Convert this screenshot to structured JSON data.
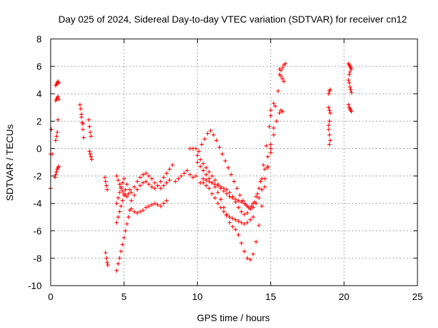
{
  "chart_data": {
    "type": "scatter",
    "title": "Day 025 of 2024, Sidereal Day-to-day VTEC variation (SDTVAR) for receiver cn12",
    "xlabel": "GPS time / hours",
    "ylabel": "SDTVAR / TECUs",
    "xlim": [
      0,
      25
    ],
    "ylim": [
      -10,
      8
    ],
    "xticks": [
      0,
      5,
      10,
      15,
      20,
      25
    ],
    "yticks": [
      -10,
      -8,
      -6,
      -4,
      -2,
      0,
      2,
      4,
      6,
      8
    ],
    "grid": true,
    "marker": "+",
    "marker_color": "#ff0000",
    "series": [
      {
        "name": "SDTVAR",
        "x": [
          0.0,
          0.0,
          0.05,
          0.1,
          0.3,
          0.35,
          0.4,
          0.45,
          0.5,
          0.55,
          0.35,
          0.4,
          0.45,
          0.5,
          0.35,
          0.4,
          0.45,
          0.5,
          0.55,
          0.35,
          0.4,
          0.45,
          0.5,
          0.55,
          2.0,
          2.05,
          2.1,
          2.15,
          2.2,
          2.25,
          2.1,
          2.2,
          2.6,
          2.65,
          2.7,
          2.75,
          2.65,
          2.7,
          2.75,
          2.8,
          3.7,
          3.75,
          3.8,
          3.85,
          3.75,
          3.8,
          3.85,
          3.9,
          4.5,
          4.6,
          4.7,
          4.8,
          4.9,
          5.0,
          5.1,
          5.2,
          5.3,
          5.4,
          4.5,
          4.6,
          4.7,
          4.8,
          4.9,
          5.0,
          5.1,
          5.2,
          5.3,
          5.4,
          4.5,
          4.6,
          4.7,
          4.8,
          4.9,
          5.0,
          5.1,
          5.2,
          4.5,
          4.6,
          4.7,
          4.8,
          4.9,
          5.0,
          5.5,
          5.7,
          5.9,
          6.1,
          6.3,
          6.5,
          6.7,
          6.9,
          7.1,
          7.3,
          7.5,
          7.7,
          7.9,
          5.5,
          5.7,
          5.9,
          6.1,
          6.3,
          6.5,
          6.7,
          6.9,
          7.1,
          7.3,
          7.5,
          7.7,
          7.9,
          8.1,
          5.5,
          5.7,
          5.9,
          6.1,
          6.3,
          6.5,
          6.7,
          6.9,
          7.1,
          7.3,
          7.5,
          7.7,
          7.9,
          8.1,
          8.3,
          8.5,
          8.7,
          8.9,
          9.1,
          9.3,
          9.5,
          9.7,
          9.9,
          9.5,
          9.7,
          9.9,
          10.1,
          10.3,
          10.5,
          10.7,
          10.9,
          11.1,
          11.3,
          11.5,
          11.7,
          11.9,
          12.1,
          12.3,
          12.5,
          12.7,
          12.9,
          13.1,
          13.3,
          13.5,
          13.7,
          13.9,
          14.1,
          14.3,
          14.5,
          14.7,
          14.9,
          15.0,
          10.0,
          10.2,
          10.4,
          10.6,
          10.8,
          11.0,
          11.2,
          11.4,
          11.6,
          11.8,
          12.0,
          12.2,
          12.4,
          12.6,
          12.8,
          13.0,
          13.2,
          13.4,
          13.6,
          13.8,
          14.0,
          14.2,
          14.4,
          14.6,
          14.8,
          15.0,
          10.4,
          10.6,
          10.8,
          11.0,
          11.2,
          11.4,
          11.6,
          11.8,
          12.0,
          12.2,
          12.4,
          12.6,
          12.8,
          13.0,
          13.2,
          13.4,
          13.6,
          13.8,
          14.0,
          14.2,
          14.4,
          14.6,
          14.8,
          15.0,
          15.2,
          10.0,
          10.2,
          10.4,
          10.6,
          10.8,
          11.0,
          11.2,
          11.4,
          11.6,
          11.8,
          12.0,
          12.2,
          12.4,
          12.6,
          12.8,
          13.0,
          13.2,
          13.4,
          13.6,
          13.8,
          14.0,
          14.2,
          14.4,
          14.6,
          14.8,
          15.0,
          15.2,
          15.4,
          10.2,
          10.4,
          10.6,
          10.8,
          11.0,
          11.2,
          11.4,
          11.6,
          11.8,
          12.0,
          12.2,
          12.4,
          12.6,
          12.8,
          13.0,
          13.2,
          13.4,
          13.6,
          13.8,
          15.0,
          15.2,
          15.3,
          15.5,
          15.6,
          15.7,
          15.8,
          15.9,
          16.0,
          15.6,
          15.7,
          15.8,
          15.9,
          15.6,
          15.7,
          15.8,
          18.95,
          19.0,
          19.05,
          18.95,
          19.0,
          19.05,
          18.95,
          19.0,
          19.05,
          19.0,
          18.95,
          19.0,
          20.3,
          20.35,
          20.4,
          20.45,
          20.5,
          20.3,
          20.35,
          20.4,
          20.45,
          20.5,
          20.3,
          20.35,
          20.4,
          20.45,
          20.5,
          20.35,
          20.4
        ],
        "y": [
          -0.4,
          -2.9,
          1.4,
          -0.4,
          -2.1,
          -1.9,
          -1.7,
          -1.5,
          -1.4,
          -1.3,
          0.6,
          0.9,
          1.2,
          2.1,
          3.5,
          3.6,
          3.7,
          3.8,
          3.6,
          4.6,
          4.7,
          4.8,
          4.9,
          4.8,
          3.2,
          2.9,
          2.5,
          1.9,
          1.4,
          0.8,
          2.3,
          1.8,
          2.1,
          1.6,
          1.2,
          0.9,
          -0.2,
          -0.4,
          -0.6,
          -0.8,
          -2.1,
          -2.4,
          -2.7,
          -3.0,
          -7.6,
          -8.0,
          -8.3,
          -8.5,
          -2.0,
          -2.3,
          -2.6,
          -2.9,
          -3.1,
          -3.3,
          -3.4,
          -3.5,
          -3.3,
          -3.0,
          -8.9,
          -8.4,
          -8.0,
          -7.5,
          -7.0,
          -6.5,
          -6.0,
          -5.5,
          -5.0,
          -4.5,
          -5.4,
          -5.0,
          -4.6,
          -4.2,
          -3.8,
          -3.4,
          -3.0,
          -2.6,
          -4.0,
          -3.6,
          -3.2,
          -2.8,
          -2.5,
          -2.2,
          -4.4,
          -4.6,
          -4.7,
          -4.6,
          -4.5,
          -4.3,
          -4.2,
          -4.1,
          -4.0,
          -4.1,
          -4.2,
          -4.0,
          -3.8,
          -3.2,
          -2.8,
          -2.4,
          -2.1,
          -1.9,
          -1.8,
          -2.0,
          -2.2,
          -2.5,
          -2.7,
          -2.9,
          -2.7,
          -2.5,
          -2.3,
          -3.8,
          -3.4,
          -3.0,
          -2.7,
          -2.5,
          -2.4,
          -2.6,
          -2.8,
          -2.9,
          -2.7,
          -2.4,
          -2.1,
          -1.8,
          -1.5,
          -1.2,
          -2.4,
          -2.2,
          -2.0,
          -1.8,
          -1.6,
          -1.9,
          -2.1,
          -2.0,
          0.0,
          0.0,
          0.0,
          -0.2,
          0.3,
          0.7,
          1.1,
          1.3,
          1.0,
          0.6,
          0.1,
          -0.4,
          -0.9,
          -1.4,
          -1.9,
          -2.4,
          -2.9,
          -3.4,
          -3.8,
          -4.1,
          -4.3,
          -4.2,
          -3.9,
          -3.3,
          -2.4,
          -1.2,
          0.2,
          1.6,
          2.4,
          -0.5,
          -0.8,
          -1.1,
          -1.4,
          -1.7,
          -2.0,
          -2.3,
          -2.6,
          -2.9,
          -3.1,
          -3.3,
          -3.5,
          -3.6,
          -3.7,
          -3.8,
          -3.9,
          -4.0,
          -4.2,
          -4.4,
          -4.3,
          -4.0,
          -3.6,
          -3.0,
          -2.2,
          -1.3,
          -0.3,
          -2.2,
          -2.3,
          -2.4,
          -2.5,
          -2.6,
          -2.7,
          -2.8,
          -2.9,
          -3.0,
          -3.2,
          -3.5,
          -3.9,
          -4.3,
          -4.6,
          -4.8,
          -4.7,
          -4.4,
          -4.0,
          -3.5,
          -2.9,
          -2.2,
          -1.5,
          -0.6,
          0.3,
          1.5,
          -1.0,
          -1.3,
          -1.6,
          -1.9,
          -2.2,
          -2.5,
          -2.8,
          -3.2,
          -3.7,
          -4.3,
          -4.9,
          -5.4,
          -5.7,
          -5.9,
          -6.3,
          -6.9,
          -7.5,
          -8.0,
          -8.1,
          -7.7,
          -6.8,
          -5.6,
          -4.2,
          -2.8,
          -1.4,
          0.0,
          1.0,
          2.0,
          -2.5,
          -2.5,
          -2.7,
          -2.9,
          -3.3,
          -3.6,
          -4.0,
          -4.3,
          -4.6,
          -4.8,
          -5.0,
          -5.1,
          -5.2,
          -5.3,
          -5.4,
          -5.5,
          -5.4,
          -5.2,
          -5.0,
          2.8,
          3.3,
          3.1,
          4.2,
          5.4,
          5.7,
          5.9,
          6.1,
          6.2,
          5.8,
          5.3,
          5.1,
          4.9,
          2.6,
          2.8,
          2.7,
          4.0,
          4.2,
          4.3,
          3.0,
          2.8,
          2.6,
          1.4,
          1.0,
          0.6,
          0.3,
          1.7,
          2.0,
          6.2,
          6.1,
          6.0,
          5.9,
          5.8,
          5.0,
          4.8,
          4.5,
          4.3,
          4.1,
          3.2,
          3.0,
          2.9,
          2.8,
          2.7,
          5.4,
          5.6
        ]
      }
    ]
  }
}
